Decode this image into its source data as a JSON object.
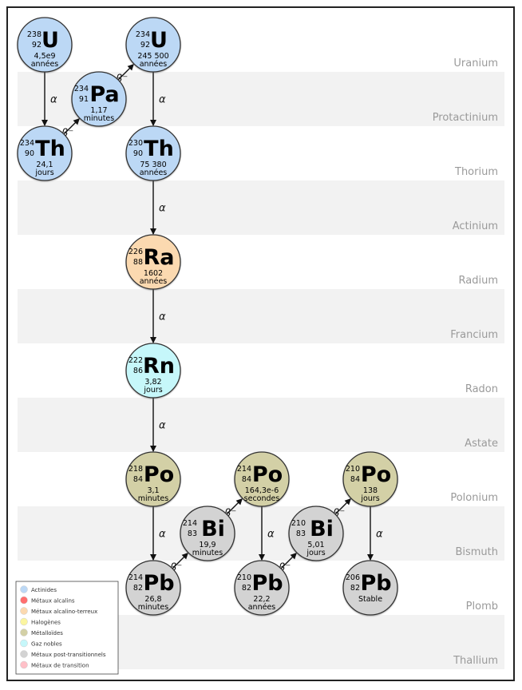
{
  "rows": [
    {
      "label": "Uranium",
      "shaded": false
    },
    {
      "label": "Protactinium",
      "shaded": true
    },
    {
      "label": "Thorium",
      "shaded": false
    },
    {
      "label": "Actinium",
      "shaded": true
    },
    {
      "label": "Radium",
      "shaded": false
    },
    {
      "label": "Francium",
      "shaded": true
    },
    {
      "label": "Radon",
      "shaded": false
    },
    {
      "label": "Astate",
      "shaded": true
    },
    {
      "label": "Polonium",
      "shaded": false
    },
    {
      "label": "Bismuth",
      "shaded": true
    },
    {
      "label": "Plomb",
      "shaded": false
    },
    {
      "label": "Thallium",
      "shaded": true
    }
  ],
  "colors": {
    "actinides": "#bcd8f5",
    "alkaline_earth": "#fbd9b0",
    "noble_gas": "#c6f7fa",
    "metalloid": "#d3d0a6",
    "post_transition": "#d3d3d3",
    "row_shade": "#f2f2f2",
    "row_label": "#9a9a9a"
  },
  "nuclides": [
    {
      "id": "u238",
      "mass": "238",
      "z": "92",
      "symbol": "U",
      "halflife": "4,5e9",
      "unit": "années",
      "family": "actinides"
    },
    {
      "id": "th234",
      "mass": "234",
      "z": "90",
      "symbol": "Th",
      "halflife": "24,1",
      "unit": "jours",
      "family": "actinides"
    },
    {
      "id": "pa234",
      "mass": "234",
      "z": "91",
      "symbol": "Pa",
      "halflife": "1,17",
      "unit": "minutes",
      "family": "actinides"
    },
    {
      "id": "u234",
      "mass": "234",
      "z": "92",
      "symbol": "U",
      "halflife": "245 500",
      "unit": "années",
      "family": "actinides"
    },
    {
      "id": "th230",
      "mass": "230",
      "z": "90",
      "symbol": "Th",
      "halflife": "75 380",
      "unit": "années",
      "family": "actinides"
    },
    {
      "id": "ra226",
      "mass": "226",
      "z": "88",
      "symbol": "Ra",
      "halflife": "1602",
      "unit": "années",
      "family": "alkaline_earth"
    },
    {
      "id": "rn222",
      "mass": "222",
      "z": "86",
      "symbol": "Rn",
      "halflife": "3,82",
      "unit": "jours",
      "family": "noble_gas"
    },
    {
      "id": "po218",
      "mass": "218",
      "z": "84",
      "symbol": "Po",
      "halflife": "3,1",
      "unit": "minutes",
      "family": "metalloid"
    },
    {
      "id": "pb214",
      "mass": "214",
      "z": "82",
      "symbol": "Pb",
      "halflife": "26,8",
      "unit": "minutes",
      "family": "post_transition"
    },
    {
      "id": "bi214",
      "mass": "214",
      "z": "83",
      "symbol": "Bi",
      "halflife": "19,9",
      "unit": "minutes",
      "family": "post_transition"
    },
    {
      "id": "po214",
      "mass": "214",
      "z": "84",
      "symbol": "Po",
      "halflife": "164,3e-6",
      "unit": "secondes",
      "family": "metalloid"
    },
    {
      "id": "pb210",
      "mass": "210",
      "z": "82",
      "symbol": "Pb",
      "halflife": "22,2",
      "unit": "années",
      "family": "post_transition"
    },
    {
      "id": "bi210",
      "mass": "210",
      "z": "83",
      "symbol": "Bi",
      "halflife": "5,01",
      "unit": "jours",
      "family": "post_transition"
    },
    {
      "id": "po210",
      "mass": "210",
      "z": "84",
      "symbol": "Po",
      "halflife": "138",
      "unit": "jours",
      "family": "metalloid"
    },
    {
      "id": "pb206",
      "mass": "206",
      "z": "82",
      "symbol": "Pb",
      "halflife": "Stable",
      "unit": "",
      "family": "post_transition"
    }
  ],
  "decays": [
    {
      "from": "u238",
      "to": "th234",
      "type": "α"
    },
    {
      "from": "th234",
      "to": "pa234",
      "type": "β⁻"
    },
    {
      "from": "pa234",
      "to": "u234",
      "type": "β⁻"
    },
    {
      "from": "u234",
      "to": "th230",
      "type": "α"
    },
    {
      "from": "th230",
      "to": "ra226",
      "type": "α"
    },
    {
      "from": "ra226",
      "to": "rn222",
      "type": "α"
    },
    {
      "from": "rn222",
      "to": "po218",
      "type": "α"
    },
    {
      "from": "po218",
      "to": "pb214",
      "type": "α"
    },
    {
      "from": "pb214",
      "to": "bi214",
      "type": "β⁻"
    },
    {
      "from": "bi214",
      "to": "po214",
      "type": "β⁻"
    },
    {
      "from": "po214",
      "to": "pb210",
      "type": "α"
    },
    {
      "from": "pb210",
      "to": "bi210",
      "type": "β⁻"
    },
    {
      "from": "bi210",
      "to": "po210",
      "type": "β⁻"
    },
    {
      "from": "po210",
      "to": "pb206",
      "type": "α"
    }
  ],
  "legend": [
    {
      "label": "Actinides",
      "color": "#bcd8f5"
    },
    {
      "label": "Métaux alcalins",
      "color": "#ff6e6e"
    },
    {
      "label": "Métaux alcalino-terreux",
      "color": "#fbd9b0"
    },
    {
      "label": "Halogènes",
      "color": "#fbf5a0"
    },
    {
      "label": "Métalloïdes",
      "color": "#d3d0a6"
    },
    {
      "label": "Gaz nobles",
      "color": "#c6f7fa"
    },
    {
      "label": "Métaux post-transitionnels",
      "color": "#d3d3d3"
    },
    {
      "label": "Métaux de transition",
      "color": "#ffc0c8"
    }
  ]
}
